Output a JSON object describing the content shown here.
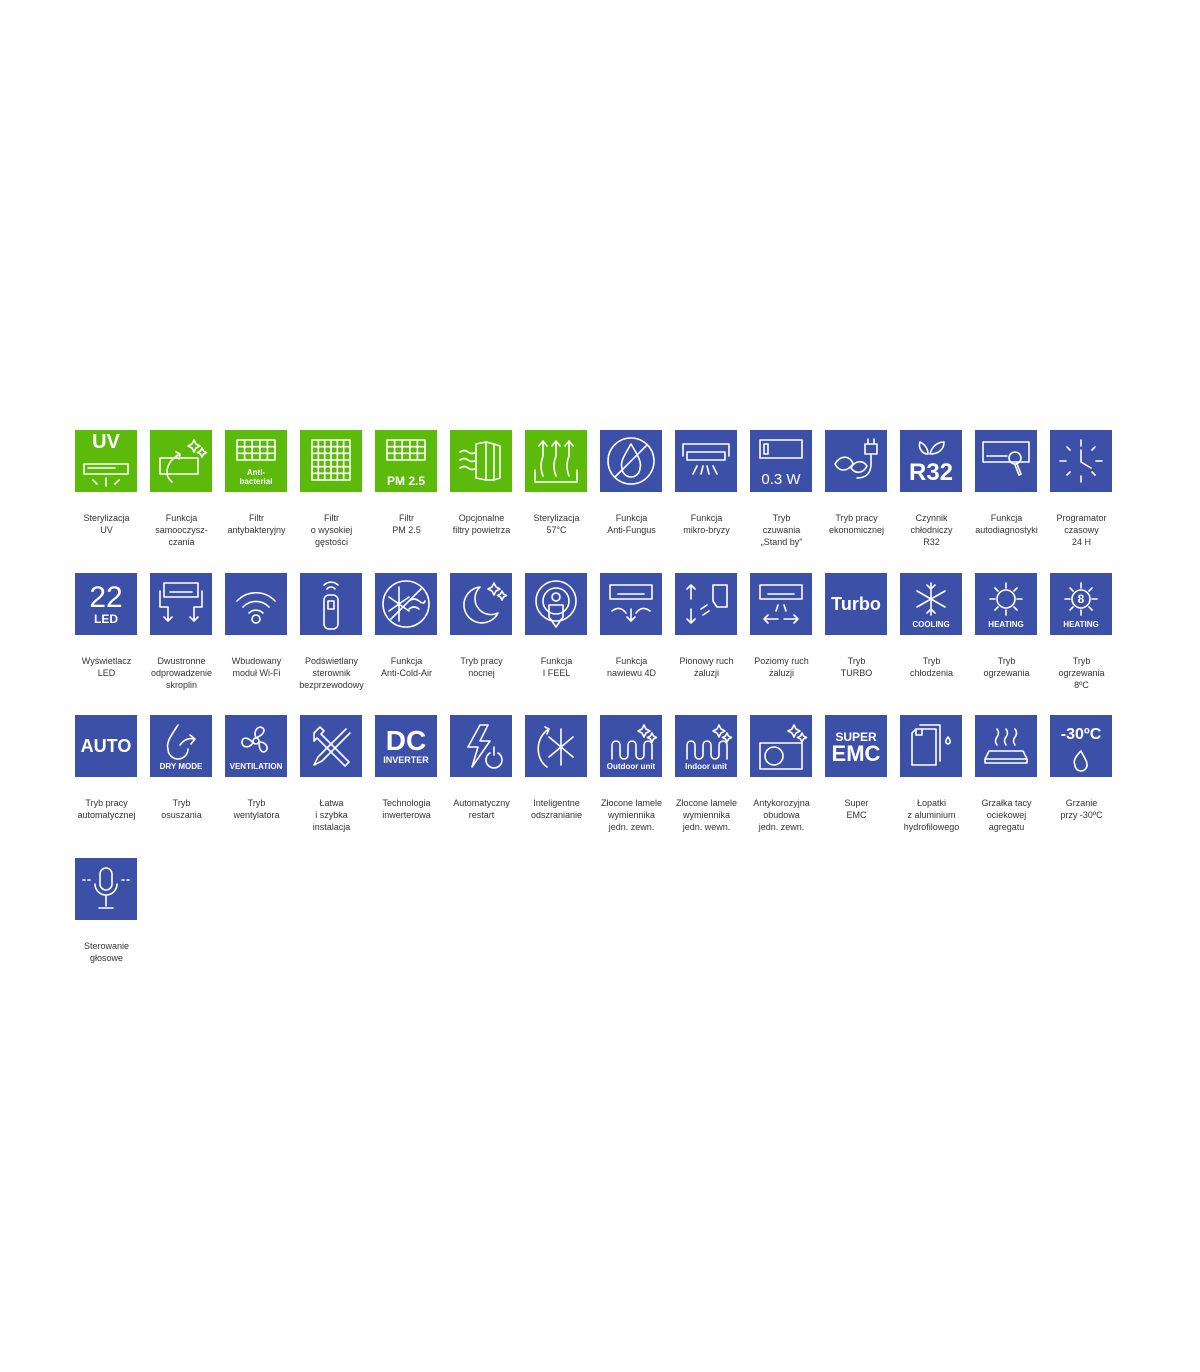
{
  "colors": {
    "green": "#5cbb0a",
    "blue": "#3c50a8",
    "label": "#333333"
  },
  "features": [
    {
      "icon": "uv-lamp-icon",
      "color": "green",
      "main": "UV",
      "sub": "",
      "label": [
        "Sterylizacja",
        "UV"
      ]
    },
    {
      "icon": "self-clean-icon",
      "color": "green",
      "main": "",
      "sub": "",
      "label": [
        "Funkcja",
        "samooczysz-",
        "czania"
      ]
    },
    {
      "icon": "filter-grid-icon",
      "color": "green",
      "main": "",
      "sub": "Anti-\nbacterial",
      "label": [
        "Filtr",
        "antybakteryjny"
      ]
    },
    {
      "icon": "dense-filter-icon",
      "color": "green",
      "main": "",
      "sub": "",
      "label": [
        "Filtr",
        "o wysokiej",
        "gęstości"
      ]
    },
    {
      "icon": "filter-grid-icon",
      "color": "green",
      "main": "",
      "sub": "PM 2.5",
      "label": [
        "Filtr",
        "PM 2.5"
      ]
    },
    {
      "icon": "air-filters-icon",
      "color": "green",
      "main": "",
      "sub": "",
      "label": [
        "Opcjonalne",
        "filtry powietrza"
      ]
    },
    {
      "icon": "steam-sterilization-icon",
      "color": "green",
      "main": "",
      "sub": "",
      "label": [
        "Sterylizacja",
        "57°C"
      ]
    },
    {
      "icon": "no-fungus-icon",
      "color": "blue",
      "main": "",
      "sub": "",
      "label": [
        "Funkcja",
        "Anti-Fungus"
      ]
    },
    {
      "icon": "micro-breeze-icon",
      "color": "blue",
      "main": "",
      "sub": "",
      "label": [
        "Funkcja",
        "mikro-bryzy"
      ]
    },
    {
      "icon": "standby-icon",
      "color": "blue",
      "main": "",
      "sub": "0.3 W",
      "label": [
        "Tryb",
        "czuwania",
        "„Stand by”"
      ]
    },
    {
      "icon": "eco-plug-icon",
      "color": "blue",
      "main": "",
      "sub": "",
      "label": [
        "Tryb pracy",
        "ekonomicznej"
      ]
    },
    {
      "icon": "r32-leaves-icon",
      "color": "blue",
      "main": "R32",
      "sub": "",
      "label": [
        "Czynnik",
        "chłodniczy",
        "R32"
      ]
    },
    {
      "icon": "diagnostics-icon",
      "color": "blue",
      "main": "",
      "sub": "",
      "label": [
        "Funkcja",
        "autodiagnostyki"
      ]
    },
    {
      "icon": "clock-icon",
      "color": "blue",
      "main": "",
      "sub": "",
      "label": [
        "Programator",
        "czasowy",
        "24 H"
      ]
    },
    {
      "icon": "led-display-icon",
      "color": "blue",
      "main": "22",
      "sub": "LED",
      "label": [
        "Wyświetlacz",
        "LED"
      ]
    },
    {
      "icon": "two-way-drain-icon",
      "color": "blue",
      "main": "",
      "sub": "",
      "label": [
        "Dwustronne",
        "odprowadzenie",
        "skroplin"
      ]
    },
    {
      "icon": "wifi-icon",
      "color": "blue",
      "main": "",
      "sub": "",
      "label": [
        "Wbudowany",
        "moduł Wi-Fi"
      ]
    },
    {
      "icon": "remote-icon",
      "color": "blue",
      "main": "",
      "sub": "",
      "label": [
        "Podświetlany",
        "sterownik",
        "bezprzewodowy"
      ]
    },
    {
      "icon": "anti-cold-air-icon",
      "color": "blue",
      "main": "",
      "sub": "",
      "label": [
        "Funkcja",
        "Anti-Cold-Air"
      ]
    },
    {
      "icon": "moon-stars-icon",
      "color": "blue",
      "main": "",
      "sub": "",
      "label": [
        "Tryb pracy",
        "nocnej"
      ]
    },
    {
      "icon": "i-feel-icon",
      "color": "blue",
      "main": "",
      "sub": "",
      "label": [
        "Funkcja",
        "I FEEL"
      ]
    },
    {
      "icon": "airflow-4d-icon",
      "color": "blue",
      "main": "",
      "sub": "",
      "label": [
        "Funkcja",
        "nawiewu 4D"
      ]
    },
    {
      "icon": "vertical-louver-icon",
      "color": "blue",
      "main": "",
      "sub": "",
      "label": [
        "Pionowy ruch",
        "żaluzji"
      ]
    },
    {
      "icon": "horizontal-louver-icon",
      "color": "blue",
      "main": "",
      "sub": "",
      "label": [
        "Poziomy ruch",
        "żaluzji"
      ]
    },
    {
      "icon": "turbo-icon",
      "color": "blue",
      "main": "Turbo",
      "sub": "",
      "label": [
        "Tryb",
        "TURBO"
      ]
    },
    {
      "icon": "snowflake-icon",
      "color": "blue",
      "main": "",
      "sub": "COOLING",
      "label": [
        "Tryb",
        "chłodzenia"
      ]
    },
    {
      "icon": "sun-icon",
      "color": "blue",
      "main": "",
      "sub": "HEATING",
      "label": [
        "Tryb",
        "ogrzewania"
      ]
    },
    {
      "icon": "sun-8-icon",
      "color": "blue",
      "main": "",
      "sub": "HEATING",
      "label": [
        "Tryb",
        "ogrzewania",
        "8ºC"
      ]
    },
    {
      "icon": "auto-icon",
      "color": "blue",
      "main": "AUTO",
      "sub": "",
      "label": [
        "Tryb pracy",
        "automatycznej"
      ]
    },
    {
      "icon": "dry-mode-icon",
      "color": "blue",
      "main": "",
      "sub": "DRY MODE",
      "label": [
        "Tryb",
        "osuszania"
      ]
    },
    {
      "icon": "fan-icon",
      "color": "blue",
      "main": "",
      "sub": "VENTILATION",
      "label": [
        "Tryb",
        "wentylatora"
      ]
    },
    {
      "icon": "tools-icon",
      "color": "blue",
      "main": "",
      "sub": "",
      "label": [
        "Łatwa",
        "i szybka",
        "instalacja"
      ]
    },
    {
      "icon": "dc-inverter-icon",
      "color": "blue",
      "main": "DC",
      "sub": "INVERTER",
      "label": [
        "Technologia",
        "inwerterowa"
      ]
    },
    {
      "icon": "auto-restart-icon",
      "color": "blue",
      "main": "",
      "sub": "",
      "label": [
        "Automatyczny",
        "restart"
      ]
    },
    {
      "icon": "defrost-icon",
      "color": "blue",
      "main": "",
      "sub": "",
      "label": [
        "Inteligentne",
        "odszranianie"
      ]
    },
    {
      "icon": "golden-fin-icon",
      "color": "blue",
      "main": "",
      "sub": "Outdoor unit",
      "label": [
        "Złocone lamele",
        "wymiennika",
        "jedn. zewn."
      ]
    },
    {
      "icon": "golden-fin-icon",
      "color": "blue",
      "main": "",
      "sub": "Indoor unit",
      "label": [
        "Złocone lamele",
        "wymiennika",
        "jedn. wewn."
      ]
    },
    {
      "icon": "anticorrosion-case-icon",
      "color": "blue",
      "main": "",
      "sub": "",
      "label": [
        "Antykorozyjna",
        "obudowa",
        "jedn. zewn."
      ]
    },
    {
      "icon": "super-emc-icon",
      "color": "blue",
      "main": "EMC",
      "sub": "SUPER",
      "label": [
        "Super",
        "EMC"
      ]
    },
    {
      "icon": "hydrophilic-fin-icon",
      "color": "blue",
      "main": "",
      "sub": "",
      "label": [
        "Łopatki",
        "z aluminium",
        "hydrofilowego"
      ]
    },
    {
      "icon": "tray-heater-icon",
      "color": "blue",
      "main": "",
      "sub": "",
      "label": [
        "Grzałka tacy",
        "ociekowej",
        "agregatu"
      ]
    },
    {
      "icon": "minus30-flame-icon",
      "color": "blue",
      "main": "-30ºC",
      "sub": "",
      "label": [
        "Grzanie",
        "przy -30ºC"
      ]
    },
    {
      "icon": "microphone-icon",
      "color": "blue",
      "main": "",
      "sub": "",
      "label": [
        "Sterowanie",
        "głosowe"
      ]
    }
  ]
}
